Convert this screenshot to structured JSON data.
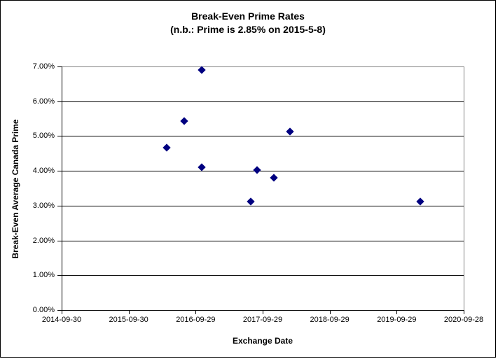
{
  "chart_data": {
    "type": "scatter",
    "title": "Break-Even Prime Rates",
    "subtitle": "(n.b.: Prime is 2.85% on 2015-5-8)",
    "xlabel": "Exchange Date",
    "ylabel": "Break-Even Average Canada Prime",
    "grid": true,
    "legend": false,
    "x_axis": {
      "type": "date",
      "min": "2014-09-30",
      "max": "2020-09-28",
      "ticks": [
        "2014-09-30",
        "2015-09-30",
        "2016-09-29",
        "2017-09-29",
        "2018-09-29",
        "2019-09-29",
        "2020-09-28"
      ]
    },
    "y_axis": {
      "min": 0,
      "max": 7,
      "ticks": [
        {
          "value": 0,
          "label": "0.00%"
        },
        {
          "value": 1,
          "label": "1.00%"
        },
        {
          "value": 2,
          "label": "2.00%"
        },
        {
          "value": 3,
          "label": "3.00%"
        },
        {
          "value": 4,
          "label": "4.00%"
        },
        {
          "value": 5,
          "label": "5.00%"
        },
        {
          "value": 6,
          "label": "6.00%"
        },
        {
          "value": 7,
          "label": "7.00%"
        }
      ]
    },
    "series": [
      {
        "marker": "diamond",
        "color": "#000080",
        "points": [
          {
            "x": "2016-04-24",
            "y": 4.66
          },
          {
            "x": "2016-07-30",
            "y": 5.43
          },
          {
            "x": "2016-11-01",
            "y": 6.89
          },
          {
            "x": "2016-11-01",
            "y": 4.1
          },
          {
            "x": "2017-07-25",
            "y": 3.12
          },
          {
            "x": "2017-08-28",
            "y": 4.02
          },
          {
            "x": "2017-11-28",
            "y": 3.81
          },
          {
            "x": "2018-02-24",
            "y": 5.12
          },
          {
            "x": "2020-02-05",
            "y": 3.12
          }
        ]
      }
    ],
    "colors": {
      "marker": "#000080",
      "gridline": "#000000",
      "plot_border": "#808080",
      "axis": "#000000",
      "background": "#FFFFFF",
      "text": "#000000"
    }
  }
}
